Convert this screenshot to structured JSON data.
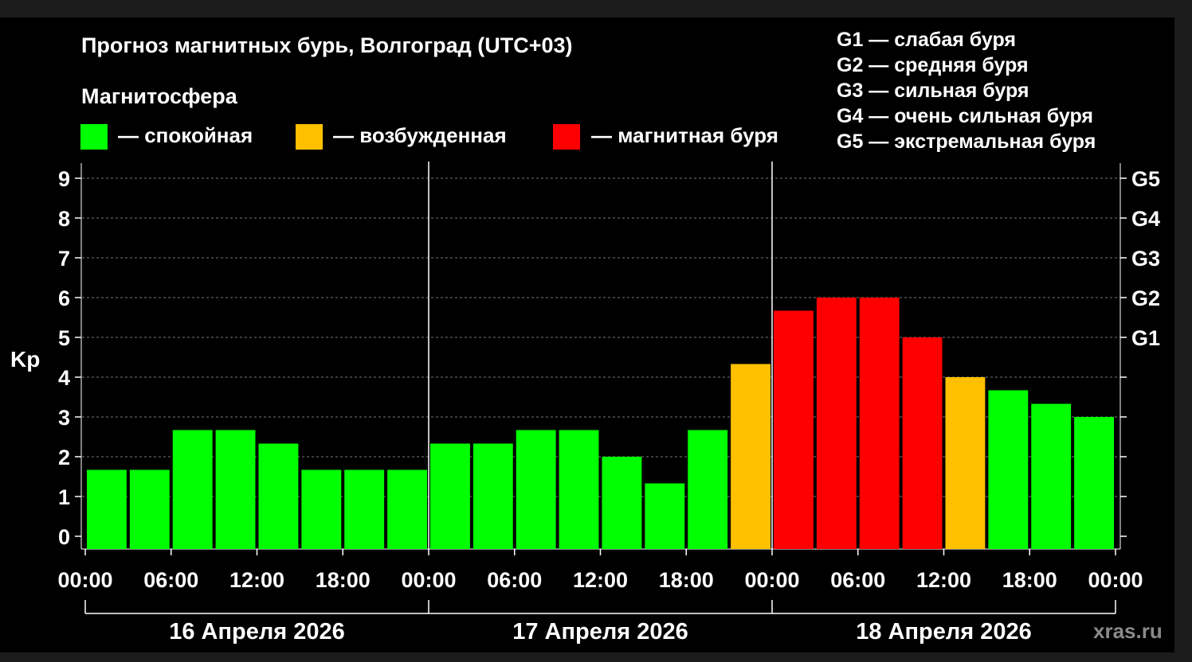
{
  "title": "Прогноз магнитных бурь, Волгоград (UTC+03)",
  "subtitle": "Магнитосфера",
  "legend": [
    {
      "label": "— спокойная",
      "color": "#00ff00"
    },
    {
      "label": "— возбужденная",
      "color": "#ffc000"
    },
    {
      "label": "— магнитная буря",
      "color": "#ff0000"
    }
  ],
  "g_legend": [
    "G1 — слабая буря",
    "G2 — средняя буря",
    "G3 — сильная буря",
    "G4 — очень сильная буря",
    "G5 — экстремальная буря"
  ],
  "watermark": "xras.ru",
  "chart_data": {
    "type": "bar",
    "ylabel": "Kp",
    "ylim": [
      0,
      9
    ],
    "y_ticks": [
      "0",
      "1",
      "2",
      "3",
      "4",
      "5",
      "6",
      "7",
      "8",
      "9"
    ],
    "right_ticks": [
      {
        "value": 5,
        "label": "G1"
      },
      {
        "value": 6,
        "label": "G2"
      },
      {
        "value": 7,
        "label": "G3"
      },
      {
        "value": 8,
        "label": "G4"
      },
      {
        "value": 9,
        "label": "G5"
      }
    ],
    "x_tick_labels": [
      "00:00",
      "06:00",
      "12:00",
      "18:00",
      "00:00",
      "06:00",
      "12:00",
      "18:00",
      "00:00",
      "06:00",
      "12:00",
      "18:00",
      "00:00"
    ],
    "days": [
      "16 Апреля 2026",
      "17 Апреля 2026",
      "18 Апреля 2026"
    ],
    "grid": true,
    "values": [
      1.67,
      1.67,
      2.67,
      2.67,
      2.33,
      1.67,
      1.67,
      1.67,
      2.33,
      2.33,
      2.67,
      2.67,
      2.0,
      1.33,
      2.67,
      4.33,
      5.67,
      6.0,
      6.0,
      5.0,
      4.0,
      3.67,
      3.33,
      3.0
    ],
    "colors": [
      "#00ff00",
      "#00ff00",
      "#00ff00",
      "#00ff00",
      "#00ff00",
      "#00ff00",
      "#00ff00",
      "#00ff00",
      "#00ff00",
      "#00ff00",
      "#00ff00",
      "#00ff00",
      "#00ff00",
      "#00ff00",
      "#00ff00",
      "#ffc000",
      "#ff0000",
      "#ff0000",
      "#ff0000",
      "#ff0000",
      "#ffc000",
      "#00ff00",
      "#00ff00",
      "#00ff00"
    ]
  }
}
